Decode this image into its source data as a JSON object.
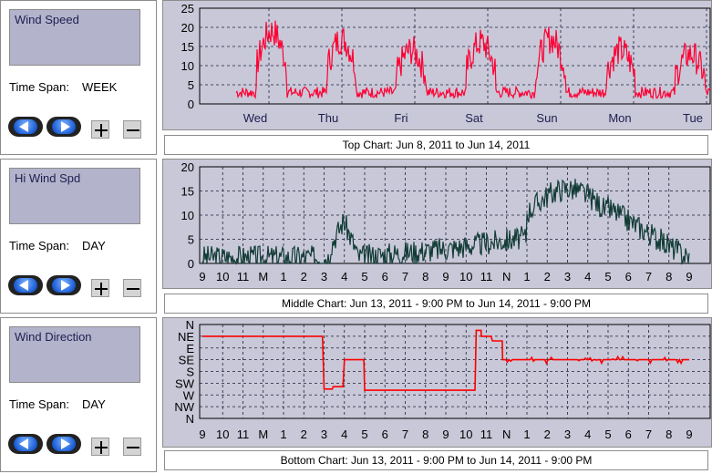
{
  "panels": [
    {
      "title": "Wind Speed",
      "time_span_label": "Time Span:",
      "time_span_value": "WEEK",
      "caption": "Top Chart:  Jun 8, 2011  to  Jun 14, 2011",
      "chart": {
        "y_ticks": [
          "0",
          "5",
          "10",
          "15",
          "20",
          "25"
        ],
        "x_ticks": [
          "Wed",
          "Thu",
          "Fri",
          "Sat",
          "Sun",
          "Mon",
          "Tue"
        ],
        "series_color": "#ff0033"
      }
    },
    {
      "title": "Hi Wind Spd",
      "time_span_label": "Time Span:",
      "time_span_value": "DAY",
      "caption": "Middle Chart:  Jun 13, 2011 - 9:00 PM  to  Jun 14, 2011 - 9:00 PM",
      "chart": {
        "y_ticks": [
          "0",
          "5",
          "10",
          "15",
          "20"
        ],
        "x_ticks": [
          "9",
          "10",
          "11",
          "M",
          "1",
          "2",
          "3",
          "4",
          "5",
          "6",
          "7",
          "8",
          "9",
          "10",
          "11",
          "N",
          "1",
          "2",
          "3",
          "4",
          "5",
          "6",
          "7",
          "8",
          "9"
        ],
        "series_color": "#123c36"
      }
    },
    {
      "title": "Wind Direction",
      "time_span_label": "Time Span:",
      "time_span_value": "DAY",
      "caption": "Bottom Chart:  Jun 13, 2011 - 9:00 PM  to  Jun 14, 2011 - 9:00 PM",
      "chart": {
        "y_ticks": [
          "N",
          "NW",
          "W",
          "SW",
          "S",
          "SE",
          "E",
          "NE",
          "N"
        ],
        "x_ticks": [
          "9",
          "10",
          "11",
          "M",
          "1",
          "2",
          "3",
          "4",
          "5",
          "6",
          "7",
          "8",
          "9",
          "10",
          "11",
          "N",
          "1",
          "2",
          "3",
          "4",
          "5",
          "6",
          "7",
          "8",
          "9"
        ],
        "series_color": "#ff0000"
      }
    }
  ],
  "colors": {
    "plot_bg": "#c8c8d8",
    "grid": "#1e1e3c",
    "panel_title_bg": "#b3b3cc",
    "button_blue": "#1d5fd6"
  },
  "icons": [
    "previous-arrow-icon",
    "next-arrow-icon",
    "plus-icon",
    "minus-icon"
  ]
}
